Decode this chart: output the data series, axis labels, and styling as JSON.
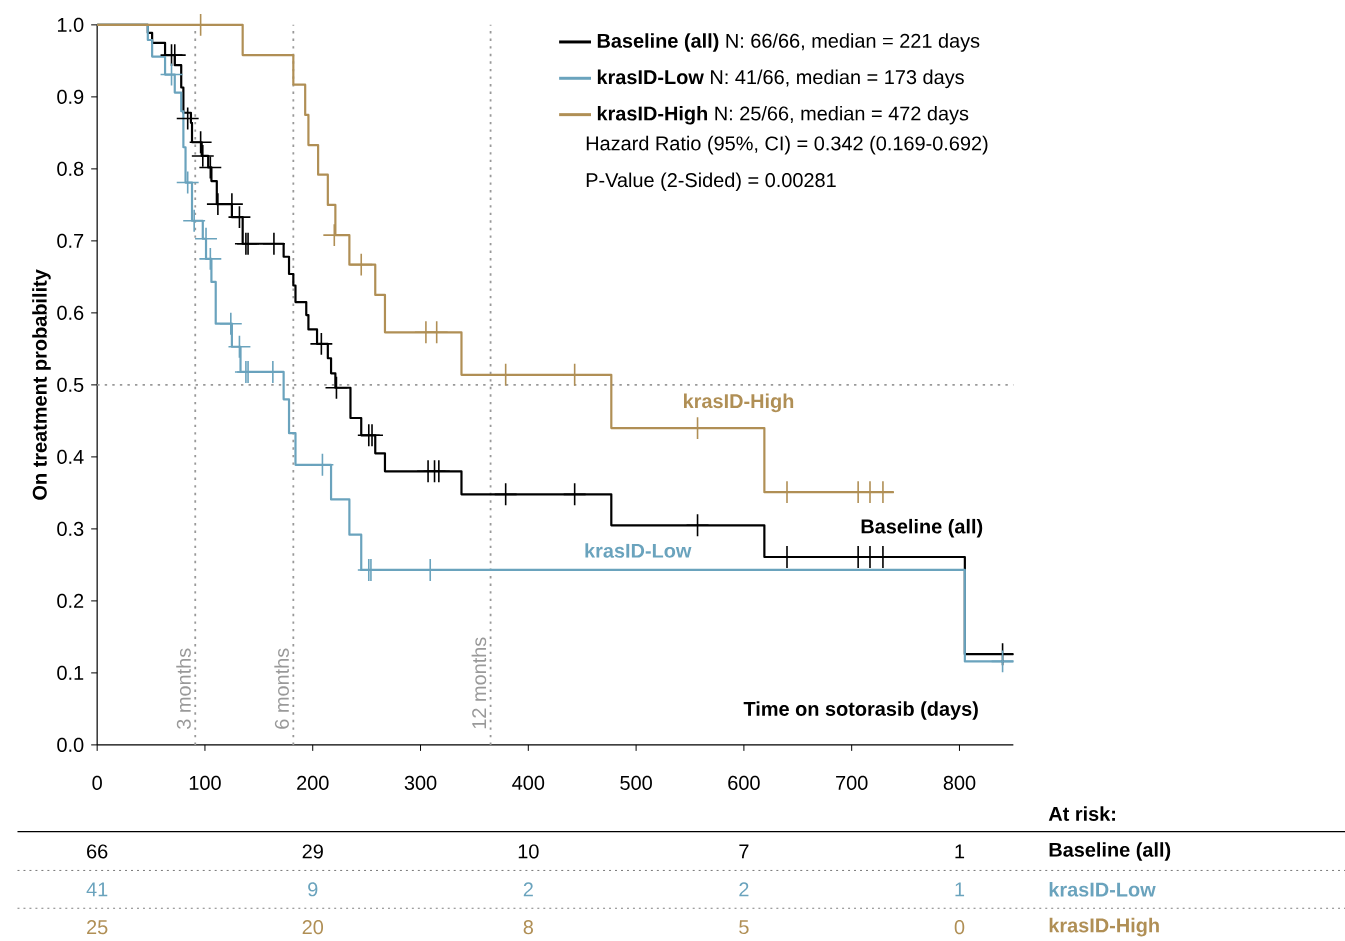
{
  "chart_data": {
    "type": "step",
    "xlabel": "Time on sotorasib (days)",
    "ylabel": "On treatment probability",
    "xlim": [
      0,
      850
    ],
    "ylim": [
      0,
      1.0
    ],
    "xticks": [
      0,
      100,
      200,
      300,
      400,
      500,
      600,
      700,
      800
    ],
    "yticks": [
      {
        "value": 0,
        "label": "0.0"
      },
      0.1,
      0.2,
      0.3,
      0.4,
      0.5,
      0.6,
      0.7,
      0.8,
      0.9,
      {
        "value": 1.0,
        "label": "1.0"
      }
    ],
    "legend": "top right",
    "series": [
      {
        "name": "**Baseline (all)** N: 66/66, median = 221 days",
        "color": "#000000",
        "x": [
          0,
          47,
          51,
          63,
          72,
          78,
          80,
          87,
          88,
          97,
          103,
          106,
          111,
          125,
          135,
          173,
          178,
          182,
          184,
          194,
          196,
          204,
          214,
          217,
          221,
          235,
          245,
          258,
          267,
          338,
          477,
          619,
          805,
          850
        ],
        "values": [
          1.0,
          0.989,
          0.975,
          0.958,
          0.944,
          0.913,
          0.878,
          0.864,
          0.837,
          0.818,
          0.802,
          0.783,
          0.751,
          0.733,
          0.696,
          0.678,
          0.654,
          0.638,
          0.615,
          0.597,
          0.577,
          0.557,
          0.537,
          0.516,
          0.496,
          0.454,
          0.43,
          0.405,
          0.38,
          0.348,
          0.305,
          0.261,
          0.126,
          0.126
        ]
      },
      {
        "name": "**krasID-Low** N: 41/66, median = 173 days",
        "color": "#6aa3bd",
        "x": [
          0,
          47,
          51,
          63,
          72,
          78,
          80,
          82,
          88,
          98,
          101,
          106,
          110,
          125,
          133,
          173,
          178,
          184,
          217,
          234,
          245,
          805,
          850
        ],
        "values": [
          1.0,
          0.979,
          0.956,
          0.931,
          0.906,
          0.88,
          0.83,
          0.781,
          0.728,
          0.703,
          0.675,
          0.643,
          0.585,
          0.553,
          0.518,
          0.48,
          0.433,
          0.389,
          0.341,
          0.292,
          0.243,
          0.116,
          0.116
        ]
      },
      {
        "name": "**krasID-High** N: 25/66, median = 472 days",
        "color": "#b08f55",
        "x": [
          0,
          135,
          182,
          193,
          196,
          205,
          214,
          221,
          234,
          258,
          267,
          338,
          477,
          619,
          739
        ],
        "values": [
          1.0,
          0.958,
          0.917,
          0.875,
          0.833,
          0.792,
          0.75,
          0.708,
          0.667,
          0.625,
          0.573,
          0.514,
          0.44,
          0.351,
          0.351
        ]
      },
      {
        "type": "scatter",
        "marker": "cross",
        "color": "#000000",
        "x": [
          69,
          72,
          84,
          96,
          98,
          105,
          112,
          125,
          132,
          138,
          140,
          164,
          208,
          222,
          252,
          255,
          307,
          313,
          317,
          379,
          443,
          557,
          640,
          706,
          717,
          729,
          840
        ],
        "values": [
          0.958,
          0.958,
          0.87,
          0.837,
          0.818,
          0.802,
          0.751,
          0.751,
          0.733,
          0.696,
          0.696,
          0.696,
          0.557,
          0.496,
          0.43,
          0.43,
          0.38,
          0.38,
          0.38,
          0.348,
          0.348,
          0.305,
          0.261,
          0.261,
          0.261,
          0.261,
          0.126
        ]
      },
      {
        "type": "scatter",
        "marker": "cross",
        "color": "#6aa3bd",
        "x": [
          69,
          84,
          90,
          101,
          105,
          124,
          132,
          138,
          140,
          163,
          209,
          252,
          254,
          309,
          840
        ],
        "values": [
          0.931,
          0.781,
          0.728,
          0.703,
          0.675,
          0.585,
          0.553,
          0.518,
          0.518,
          0.518,
          0.389,
          0.243,
          0.243,
          0.243,
          0.116
        ]
      },
      {
        "type": "scatter",
        "marker": "cross",
        "color": "#b08f55",
        "x": [
          96,
          220,
          245,
          305,
          315,
          379,
          443,
          557,
          640,
          706,
          717,
          729
        ],
        "values": [
          1.0,
          0.708,
          0.667,
          0.573,
          0.573,
          0.514,
          0.514,
          0.44,
          0.351,
          0.351,
          0.351,
          0.351
        ]
      }
    ],
    "ref_lines": [
      {
        "axis": "x",
        "value": 91,
        "label": "3 months",
        "color": "#999999",
        "line_style": "dotted"
      },
      {
        "axis": "x",
        "value": 182,
        "label": "6 months",
        "color": "#999999",
        "line_style": "dotted"
      },
      {
        "axis": "x",
        "value": 365,
        "label": "12 months",
        "color": "#999999",
        "line_style": "dotted"
      },
      {
        "axis": "y",
        "value": 0.5,
        "color": "#999999",
        "line_style": "dotted"
      }
    ],
    "annotations": [
      "Hazard Ratio (95%, CI) = 0.342 (0.169-0.692)",
      "P-Value (2-Sided) = 0.00281",
      "Baseline (all)",
      "krasID-Low",
      "krasID-High",
      "At risk:",
      "66",
      "29",
      "10",
      "7",
      "1",
      "Baseline (all)",
      "41",
      "9",
      "2",
      "2",
      "1",
      "krasID-Low",
      "25",
      "20",
      "8",
      "5",
      "0",
      "krasID-High"
    ]
  }
}
